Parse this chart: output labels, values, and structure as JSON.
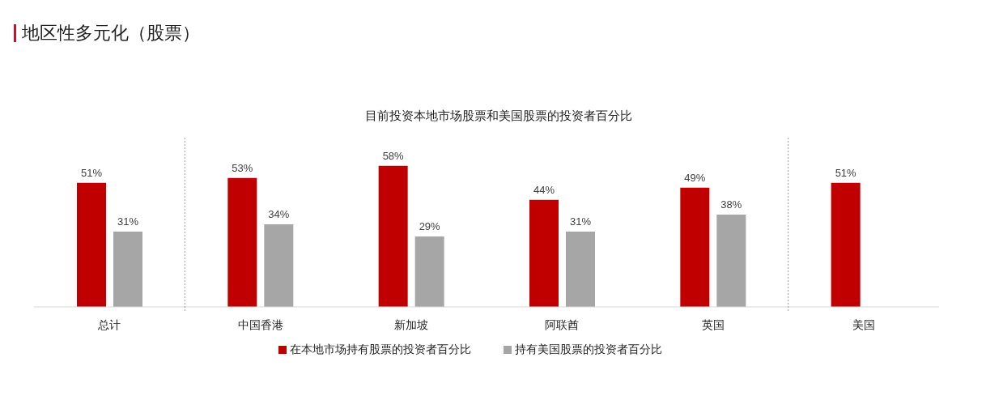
{
  "chart_data": {
    "type": "bar",
    "title": "地区性多元化（股票）",
    "subtitle": "目前投资本地市场股票和美国股票的投资者百分比",
    "categories": [
      "总计",
      "中国香港",
      "新加坡",
      "阿联酋",
      "英国",
      "美国"
    ],
    "series": [
      {
        "name": "在本地市场持有股票的投资者百分比",
        "color": "#c00000",
        "values": [
          51,
          53,
          58,
          44,
          49,
          51
        ],
        "value_labels": [
          "51%",
          "53%",
          "58%",
          "44%",
          "49%",
          "51%"
        ]
      },
      {
        "name": "持有美国股票的投资者百分比",
        "color": "#a6a6a6",
        "values": [
          31,
          34,
          29,
          31,
          38,
          null
        ],
        "value_labels": [
          "31%",
          "34%",
          "29%",
          "31%",
          "38%",
          null
        ]
      }
    ],
    "tick_labels": "x",
    "legend": "bottom"
  }
}
